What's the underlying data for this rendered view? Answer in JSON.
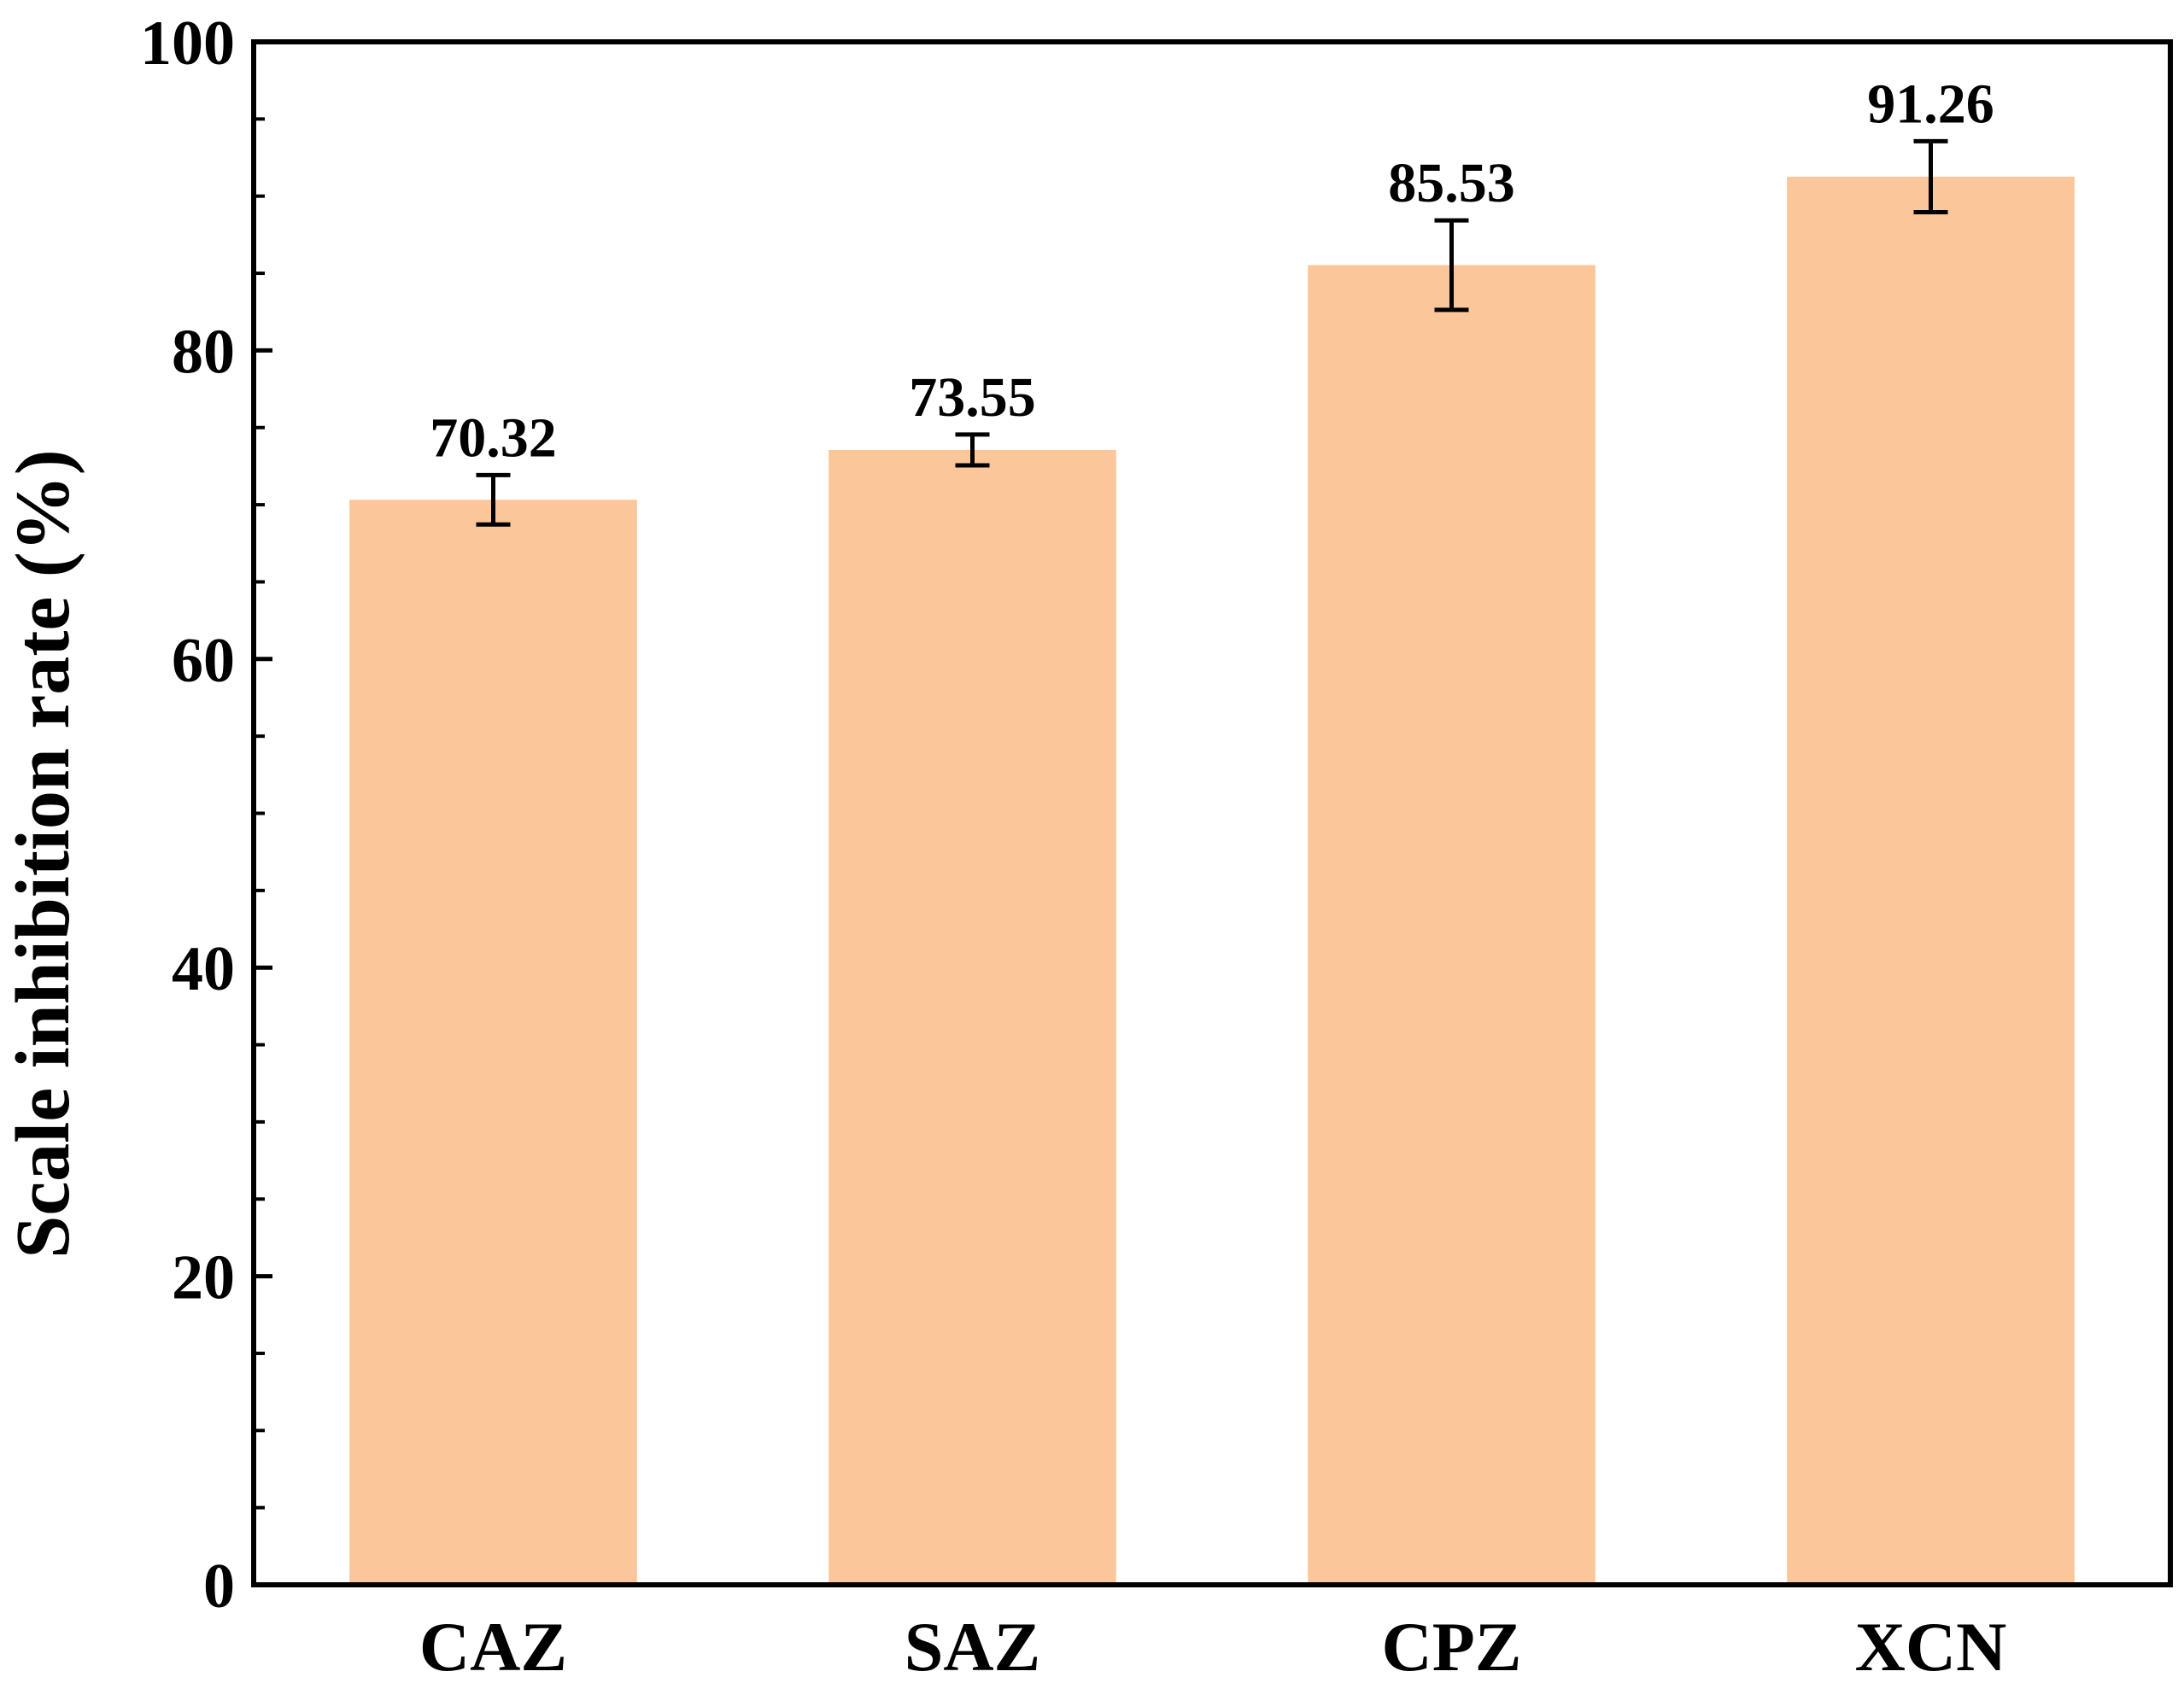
{
  "chart_data": {
    "type": "bar",
    "y_label": "Scale inhibition rate (%)",
    "categories": [
      "CAZ",
      "SAZ",
      "CPZ",
      "XCN"
    ],
    "values": [
      70.32,
      73.55,
      85.53,
      91.26
    ],
    "errors": [
      1.6,
      1.0,
      2.9,
      2.3
    ],
    "color": "#fbc699",
    "ylim": [
      0,
      100
    ],
    "yticks": [
      0,
      20,
      40,
      60,
      80,
      100
    ],
    "yminorticks": [
      10,
      30,
      50,
      70,
      90,
      5,
      15,
      25,
      35,
      45,
      55,
      65,
      75,
      85,
      95
    ]
  }
}
